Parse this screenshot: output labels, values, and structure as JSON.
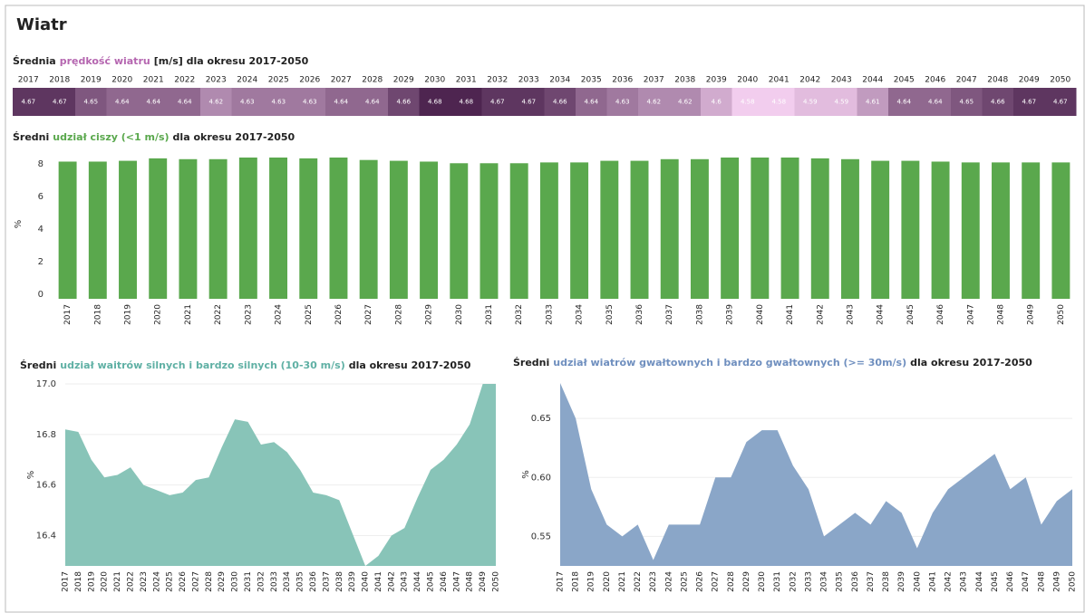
{
  "header": "Wiatr",
  "chart_data": [
    {
      "type": "heatmap",
      "title": [
        "Średnia",
        "prędkość wiatru",
        "[m/s] dla okresu 2017-2050"
      ],
      "title_color": "#b566b0",
      "categories": [
        "2017",
        "2018",
        "2019",
        "2020",
        "2021",
        "2022",
        "2023",
        "2024",
        "2025",
        "2026",
        "2027",
        "2028",
        "2029",
        "2030",
        "2031",
        "2032",
        "2033",
        "2034",
        "2035",
        "2036",
        "2037",
        "2038",
        "2039",
        "2040",
        "2041",
        "2042",
        "2043",
        "2044",
        "2045",
        "2046",
        "2047",
        "2048",
        "2049",
        "2050"
      ],
      "values": [
        4.67,
        4.67,
        4.65,
        4.64,
        4.64,
        4.64,
        4.62,
        4.63,
        4.63,
        4.63,
        4.64,
        4.64,
        4.66,
        4.68,
        4.68,
        4.67,
        4.67,
        4.66,
        4.64,
        4.63,
        4.62,
        4.62,
        4.6,
        4.58,
        4.58,
        4.59,
        4.59,
        4.61,
        4.64,
        4.64,
        4.65,
        4.66,
        4.67,
        4.67
      ],
      "color_range": [
        "#f2cdee",
        "#4e2550"
      ]
    },
    {
      "type": "bar",
      "title": [
        "Średni",
        "udział ciszy (<1 m/s)",
        "dla okresu 2017-2050"
      ],
      "title_color": "#5aa84d",
      "categories": [
        "2017",
        "2018",
        "2019",
        "2020",
        "2021",
        "2022",
        "2023",
        "2024",
        "2025",
        "2026",
        "2027",
        "2028",
        "2029",
        "2030",
        "2031",
        "2032",
        "2033",
        "2034",
        "2035",
        "2036",
        "2037",
        "2038",
        "2039",
        "2040",
        "2041",
        "2042",
        "2043",
        "2044",
        "2045",
        "2046",
        "2047",
        "2048",
        "2049",
        "2050"
      ],
      "values": [
        8.15,
        8.15,
        8.2,
        8.35,
        8.3,
        8.3,
        8.4,
        8.4,
        8.35,
        8.4,
        8.25,
        8.2,
        8.15,
        8.05,
        8.05,
        8.05,
        8.1,
        8.1,
        8.2,
        8.2,
        8.3,
        8.3,
        8.4,
        8.4,
        8.4,
        8.35,
        8.3,
        8.2,
        8.2,
        8.15,
        8.1,
        8.1,
        8.1,
        8.1
      ],
      "color": "#5aa84d",
      "ylabel": "%",
      "ylim": [
        -0.28,
        8.9
      ],
      "yticks": [
        0,
        2,
        4,
        6,
        8
      ],
      "grid": false
    },
    {
      "type": "area",
      "title": [
        "Średni",
        "udział waitrów silnych i bardzo silnych (10-30 m/s)",
        "dla okresu 2017-2050"
      ],
      "title_color": "#5fb0a4",
      "categories": [
        "2017",
        "2018",
        "2019",
        "2020",
        "2021",
        "2022",
        "2023",
        "2024",
        "2025",
        "2026",
        "2027",
        "2028",
        "2029",
        "2030",
        "2031",
        "2032",
        "2033",
        "2034",
        "2035",
        "2036",
        "2037",
        "2038",
        "2039",
        "2040",
        "2041",
        "2042",
        "2043",
        "2044",
        "2045",
        "2046",
        "2047",
        "2048",
        "2049",
        "2050"
      ],
      "values": [
        16.82,
        16.81,
        16.7,
        16.63,
        16.64,
        16.67,
        16.6,
        16.58,
        16.56,
        16.57,
        16.62,
        16.63,
        16.75,
        16.86,
        16.85,
        16.76,
        16.77,
        16.73,
        16.66,
        16.57,
        16.56,
        16.54,
        16.41,
        16.28,
        16.32,
        16.4,
        16.43,
        16.55,
        16.66,
        16.7,
        16.76,
        16.84,
        17.0,
        17.0
      ],
      "color": "#88c4b8",
      "ylabel": "%",
      "ylim": [
        16.28,
        17.0
      ],
      "yticks": [
        16.4,
        16.6,
        16.8,
        {
          "value": 17,
          "label": "17.0"
        }
      ],
      "grid": true
    },
    {
      "type": "area",
      "title": [
        "Średni",
        "udział wiatrów gwałtownych i bardzo gwałtownych (>= 30m/s)",
        "dla okresu 2017-2050"
      ],
      "title_color": "#6f8fbf",
      "categories": [
        "2017",
        "2018",
        "2019",
        "2020",
        "2021",
        "2022",
        "2023",
        "2024",
        "2025",
        "2026",
        "2027",
        "2028",
        "2029",
        "2030",
        "2031",
        "2032",
        "2033",
        "2034",
        "2035",
        "2036",
        "2037",
        "2038",
        "2039",
        "2040",
        "2041",
        "2042",
        "2043",
        "2044",
        "2045",
        "2046",
        "2047",
        "2048",
        "2049",
        "2050"
      ],
      "values": [
        0.68,
        0.65,
        0.59,
        0.56,
        0.55,
        0.56,
        0.53,
        0.56,
        0.56,
        0.56,
        0.6,
        0.6,
        0.63,
        0.64,
        0.64,
        0.61,
        0.59,
        0.55,
        0.56,
        0.57,
        0.56,
        0.58,
        0.57,
        0.54,
        0.57,
        0.59,
        0.6,
        0.61,
        0.62,
        0.59,
        0.6,
        0.56,
        0.58,
        0.59
      ],
      "color": "#8aa6c8",
      "ylabel": "%",
      "ylim": [
        0.525,
        0.68
      ],
      "yticks": [
        0.55,
        {
          "value": 0.6,
          "label": "0.60"
        },
        0.65
      ],
      "grid": true
    }
  ]
}
